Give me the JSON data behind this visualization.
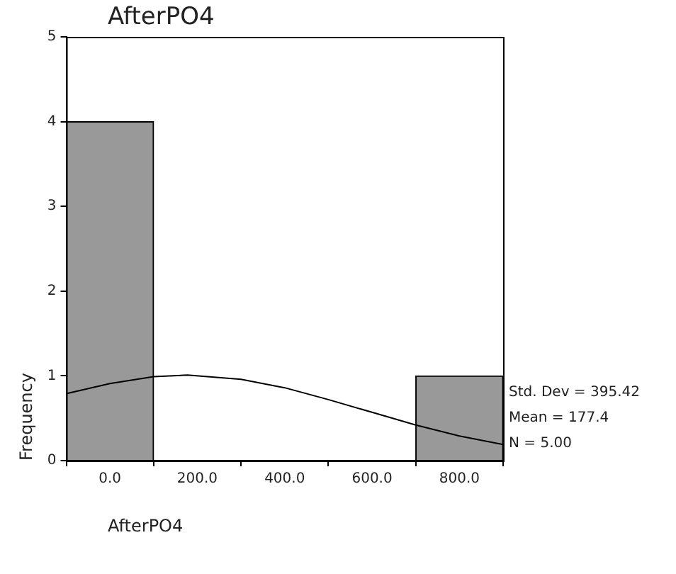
{
  "chart_data": {
    "type": "histogram",
    "title": "AfterPO4",
    "xlabel": "AfterPO4",
    "ylabel": "Frequency",
    "bins": [
      -100,
      100,
      300,
      500,
      700,
      900
    ],
    "values": [
      4,
      0,
      0,
      0,
      1
    ],
    "color": "#999999",
    "series": [
      {
        "type": "line",
        "color": "#000000",
        "x": [
          -100,
          0,
          100,
          177.4,
          300,
          400,
          500,
          600,
          700,
          800,
          900
        ],
        "values": [
          0.79,
          0.91,
          0.99,
          1.01,
          0.96,
          0.86,
          0.72,
          0.57,
          0.42,
          0.29,
          0.19
        ]
      }
    ],
    "xlim": [
      -100,
      900
    ],
    "xticks": [
      {
        "value": 0,
        "label": "0.0"
      },
      {
        "value": 200,
        "label": "200.0"
      },
      {
        "value": 400,
        "label": "400.0"
      },
      {
        "value": 600,
        "label": "600.0"
      },
      {
        "value": 800,
        "label": "800.0"
      }
    ],
    "ylim": [
      0,
      5
    ],
    "yticks": [
      0,
      1,
      2,
      3,
      4,
      5
    ],
    "grid": false,
    "legend": false,
    "annotations": [
      "Std. Dev = 395.42",
      "Mean = 177.4",
      "N = 5.00"
    ]
  }
}
